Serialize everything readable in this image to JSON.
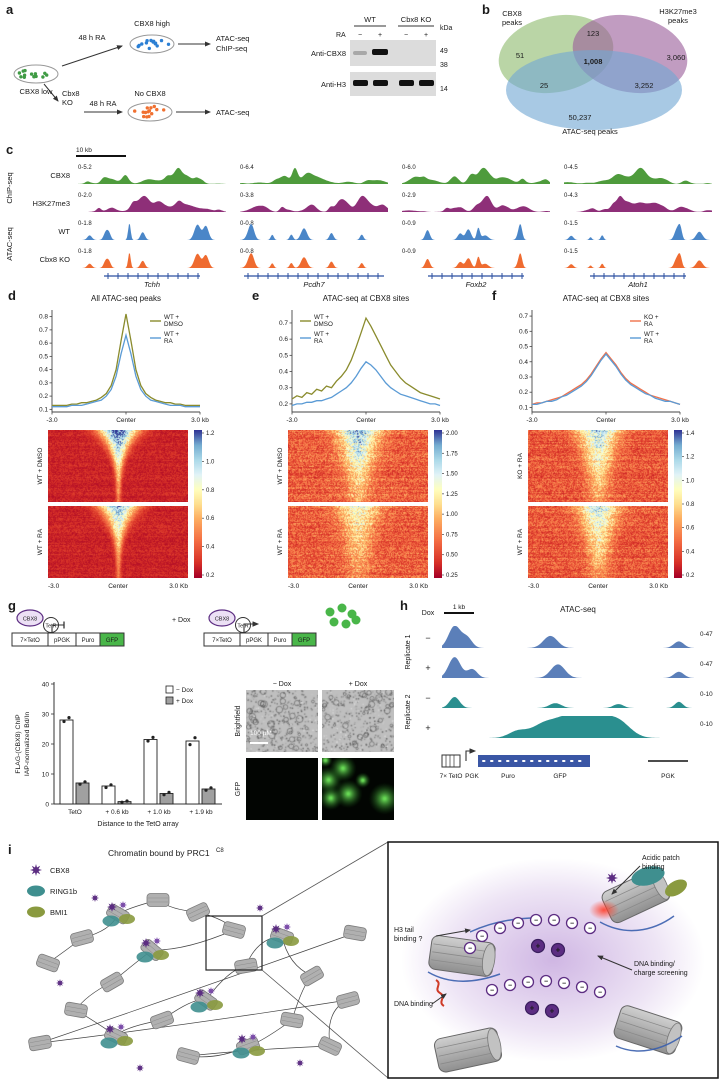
{
  "panel_a": {
    "label": "a",
    "flow": {
      "start_cell": "CBX8 low",
      "ra_top": "48 h RA",
      "top_state": "CBX8 high",
      "top_assay1": "ATAC-seq",
      "top_assay2": "ChIP-seq",
      "ko_line1": "Cbx8",
      "ko_line2": "KO",
      "ra_bottom": "48 h RA",
      "bottom_state": "No CBX8",
      "bottom_assay": "ATAC-seq"
    },
    "blot": {
      "ra": "RA",
      "group_wt": "WT",
      "group_ko": "Cbx8 KO",
      "lanes": [
        "−",
        "+",
        "−",
        "+"
      ],
      "kda": "kDa",
      "markers": [
        "49",
        "38",
        "14"
      ],
      "row1": "Anti-CBX8",
      "row2": "Anti-H3"
    }
  },
  "panel_b": {
    "label": "b",
    "set_labels": {
      "cbx8_line1": "CBX8",
      "cbx8_line2": "peaks",
      "h3_line1": "H3K27me3",
      "h3_line2": "peaks",
      "atac": "ATAC-seq peaks"
    },
    "counts": {
      "cbx8_only": "51",
      "cbx8_h3": "123",
      "h3_only": "3,060",
      "all_three": "1,008",
      "cbx8_atac": "25",
      "h3_atac": "3,252",
      "atac_only": "50,237"
    },
    "colors": {
      "cbx8": "#8fbc6f",
      "h3k27me3": "#9b5f9b",
      "atac": "#72a8d3"
    }
  },
  "panel_c": {
    "label": "c",
    "scale": "10 kb",
    "group1": "ChIP-seq",
    "group2": "ATAC-seq",
    "rows": [
      {
        "name": "CBX8",
        "color": "#4e9b3c",
        "kind": "broad",
        "ranges": [
          "0-5.2",
          "0-6.4",
          "0-6.0",
          "0-4.5"
        ]
      },
      {
        "name": "H3K27me3",
        "color": "#8e2f78",
        "kind": "broad",
        "ranges": [
          "0-2.0",
          "0-3.8",
          "0-2.9",
          "0-4.3"
        ]
      },
      {
        "name": "WT",
        "color": "#4a86c8",
        "kind": "sparse",
        "ranges": [
          "0-1.8",
          "0-0.8",
          "0-0.9",
          "0-1.5"
        ]
      },
      {
        "name": "Cbx8 KO",
        "color": "#ef6b30",
        "kind": "sparse",
        "ranges": [
          "0-1.8",
          "0-0.8",
          "0-0.9",
          "0-1.5"
        ]
      }
    ],
    "genes": [
      "Tchh",
      "Pcdh7",
      "Foxb2",
      "Atoh1"
    ]
  },
  "chart_data": [
    {
      "id": "panel_d_profile",
      "type": "line",
      "title": "All ATAC-seq peaks",
      "xticks": [
        "-3.0",
        "Center",
        "3.0 kb"
      ],
      "ylim": [
        0.08,
        0.85
      ],
      "yticks": [
        0.1,
        0.2,
        0.3,
        0.4,
        0.5,
        0.6,
        0.7,
        0.8
      ],
      "legend_pos": "right",
      "series": [
        {
          "name_lines": [
            "WT +",
            "DMSO"
          ],
          "color": "#8a8b2d",
          "values": [
            0.13,
            0.13,
            0.13,
            0.13,
            0.14,
            0.14,
            0.15,
            0.15,
            0.16,
            0.17,
            0.19,
            0.22,
            0.28,
            0.4,
            0.62,
            0.82,
            0.62,
            0.4,
            0.28,
            0.22,
            0.19,
            0.17,
            0.16,
            0.15,
            0.15,
            0.14,
            0.14,
            0.13,
            0.13,
            0.13,
            0.13
          ]
        },
        {
          "name_lines": [
            "WT +",
            "RA"
          ],
          "color": "#5b9bd5",
          "values": [
            0.12,
            0.12,
            0.12,
            0.12,
            0.13,
            0.13,
            0.13,
            0.14,
            0.15,
            0.16,
            0.17,
            0.2,
            0.25,
            0.35,
            0.52,
            0.66,
            0.52,
            0.35,
            0.25,
            0.2,
            0.17,
            0.16,
            0.15,
            0.14,
            0.13,
            0.13,
            0.13,
            0.12,
            0.12,
            0.12,
            0.12
          ]
        }
      ]
    },
    {
      "id": "panel_e_profile",
      "type": "line",
      "title": "ATAC-seq at CBX8 sites",
      "xticks": [
        "-3.0",
        "Center",
        "3.0 kb"
      ],
      "ylim": [
        0.15,
        0.78
      ],
      "yticks": [
        0.2,
        0.3,
        0.4,
        0.5,
        0.6,
        0.7
      ],
      "legend_pos": "left",
      "series": [
        {
          "name_lines": [
            "WT +",
            "DMSO"
          ],
          "color": "#8a8b2d",
          "values": [
            0.23,
            0.25,
            0.24,
            0.27,
            0.26,
            0.29,
            0.28,
            0.31,
            0.3,
            0.34,
            0.37,
            0.41,
            0.47,
            0.55,
            0.64,
            0.73,
            0.68,
            0.62,
            0.56,
            0.5,
            0.44,
            0.4,
            0.36,
            0.33,
            0.31,
            0.29,
            0.27,
            0.26,
            0.25,
            0.24,
            0.23
          ]
        },
        {
          "name_lines": [
            "WT +",
            "RA"
          ],
          "color": "#5b9bd5",
          "values": [
            0.19,
            0.2,
            0.2,
            0.21,
            0.21,
            0.22,
            0.22,
            0.23,
            0.24,
            0.26,
            0.28,
            0.3,
            0.33,
            0.37,
            0.42,
            0.46,
            0.44,
            0.41,
            0.37,
            0.33,
            0.3,
            0.28,
            0.26,
            0.25,
            0.24,
            0.23,
            0.22,
            0.21,
            0.2,
            0.2,
            0.19
          ]
        }
      ]
    },
    {
      "id": "panel_f_profile",
      "type": "line",
      "title": "ATAC-seq at CBX8 sites",
      "xticks": [
        "-3.0",
        "Center",
        "3.0 kb"
      ],
      "ylim": [
        0.07,
        0.74
      ],
      "yticks": [
        0.1,
        0.2,
        0.3,
        0.4,
        0.5,
        0.6,
        0.7
      ],
      "legend_pos": "right",
      "series": [
        {
          "name_lines": [
            "KO +",
            "RA"
          ],
          "color": "#f0714a",
          "values": [
            0.12,
            0.13,
            0.13,
            0.14,
            0.15,
            0.16,
            0.17,
            0.19,
            0.21,
            0.23,
            0.25,
            0.28,
            0.32,
            0.37,
            0.42,
            0.46,
            0.42,
            0.38,
            0.33,
            0.29,
            0.26,
            0.24,
            0.22,
            0.2,
            0.18,
            0.17,
            0.16,
            0.15,
            0.14,
            0.13,
            0.12
          ]
        },
        {
          "name_lines": [
            "WT +",
            "RA"
          ],
          "color": "#5b9bd5",
          "values": [
            0.12,
            0.12,
            0.13,
            0.14,
            0.14,
            0.15,
            0.17,
            0.18,
            0.2,
            0.22,
            0.24,
            0.27,
            0.31,
            0.36,
            0.41,
            0.45,
            0.41,
            0.37,
            0.32,
            0.28,
            0.25,
            0.23,
            0.21,
            0.19,
            0.18,
            0.16,
            0.15,
            0.14,
            0.14,
            0.13,
            0.12
          ]
        }
      ]
    },
    {
      "id": "panel_g_bar",
      "type": "bar",
      "ylabel_lines": [
        "FLAG-(CBX8) ChIP",
        "IAP-normalized Bd/In"
      ],
      "xlabel": "Distance to the TetO array",
      "categories": [
        "TetO",
        "+ 0.6 kb",
        "+ 1.0 kb",
        "+ 1.9 kb"
      ],
      "ylim": [
        0,
        40
      ],
      "yticks": [
        0,
        10,
        20,
        30,
        40
      ],
      "series": [
        {
          "name": "− Dox",
          "fill": "#ffffff",
          "values": [
            28,
            6,
            21.5,
            21
          ],
          "points": [
            [
              27.5,
              28.8
            ],
            [
              5.5,
              6.4
            ],
            [
              21.0,
              22.2
            ],
            [
              19.8,
              22.1
            ]
          ]
        },
        {
          "name": "+ Dox",
          "fill": "#a0a0a0",
          "values": [
            7,
            0.8,
            3.5,
            5
          ],
          "points": [
            [
              6.6,
              7.4
            ],
            [
              0.6,
              1.0
            ],
            [
              3.1,
              3.9
            ],
            [
              4.6,
              5.4
            ]
          ]
        }
      ]
    }
  ],
  "heatmaps": [
    {
      "panel": "d",
      "row_labels": [
        "WT + DMSO",
        "WT + RA"
      ],
      "xticks": [
        "-3.0",
        "Center",
        "3.0 Kb"
      ],
      "colorbar_ticks": [
        "1.2",
        "1.0",
        "0.8",
        "0.6",
        "0.4",
        "0.2"
      ]
    },
    {
      "panel": "e",
      "row_labels": [
        "WT + DMSO",
        "WT + RA"
      ],
      "xticks": [
        "-3.0",
        "Center",
        "3.0 Kb"
      ],
      "colorbar_ticks": [
        "2.00",
        "1.75",
        "1.50",
        "1.25",
        "1.00",
        "0.75",
        "0.50",
        "0.25"
      ]
    },
    {
      "panel": "f",
      "row_labels": [
        "KO + RA",
        "WT + RA"
      ],
      "xticks": [
        "-3.0",
        "Center",
        "3.0 Kb"
      ],
      "colorbar_ticks": [
        "1.4",
        "1.2",
        "1.0",
        "0.8",
        "0.6",
        "0.4",
        "0.2"
      ]
    }
  ],
  "panel_d": {
    "label": "d"
  },
  "panel_e": {
    "label": "e"
  },
  "panel_f": {
    "label": "f"
  },
  "panel_g": {
    "label": "g",
    "construct": {
      "cbx8": "CBX8",
      "tetr": "TetR",
      "teto": "7×TetO",
      "ppgk": "pPGK",
      "puro": "Puro",
      "gfp": "GFP",
      "dox": "+ Dox"
    },
    "microscopy": {
      "cols": [
        "− Dox",
        "+ Dox"
      ],
      "rows": [
        "Brightfield",
        "GFP"
      ],
      "scale": "100 µM"
    }
  },
  "panel_h": {
    "label": "h",
    "dox": "Dox",
    "scale": "1 kb",
    "title": "ATAC-seq",
    "groups": [
      "Replicate 1",
      "Replicate 2"
    ],
    "tracks": [
      {
        "sign": "−",
        "range": "0-47",
        "color": "#5b7fb9",
        "group": 0
      },
      {
        "sign": "+",
        "range": "0-47",
        "color": "#5b7fb9",
        "group": 0
      },
      {
        "sign": "−",
        "range": "0-10",
        "color": "#2a8f8f",
        "group": 1
      },
      {
        "sign": "+",
        "range": "0-10",
        "color": "#2a8f8f",
        "group": 1
      }
    ],
    "construct": {
      "teto": "7× TetO",
      "pgk1": "PGK",
      "puro": "Puro",
      "gfp": "GFP",
      "pgk2": "PGK"
    }
  },
  "panel_i": {
    "label": "i",
    "title": "Chromatin bound by PRC1",
    "title_sup": "C8",
    "legend": [
      {
        "name": "CBX8",
        "color": "#5c2d82"
      },
      {
        "name": "RING1b",
        "color": "#3f8f8f"
      },
      {
        "name": "BMI1",
        "color": "#8a9a3f"
      }
    ],
    "inset": {
      "acidic_1": "Acidic patch",
      "acidic_2": "binding",
      "h3_1": "H3 tail",
      "h3_2": "binding ?",
      "dna_charge_1": "DNA binding/",
      "dna_charge_2": "charge screening",
      "dna": "DNA binding"
    }
  }
}
